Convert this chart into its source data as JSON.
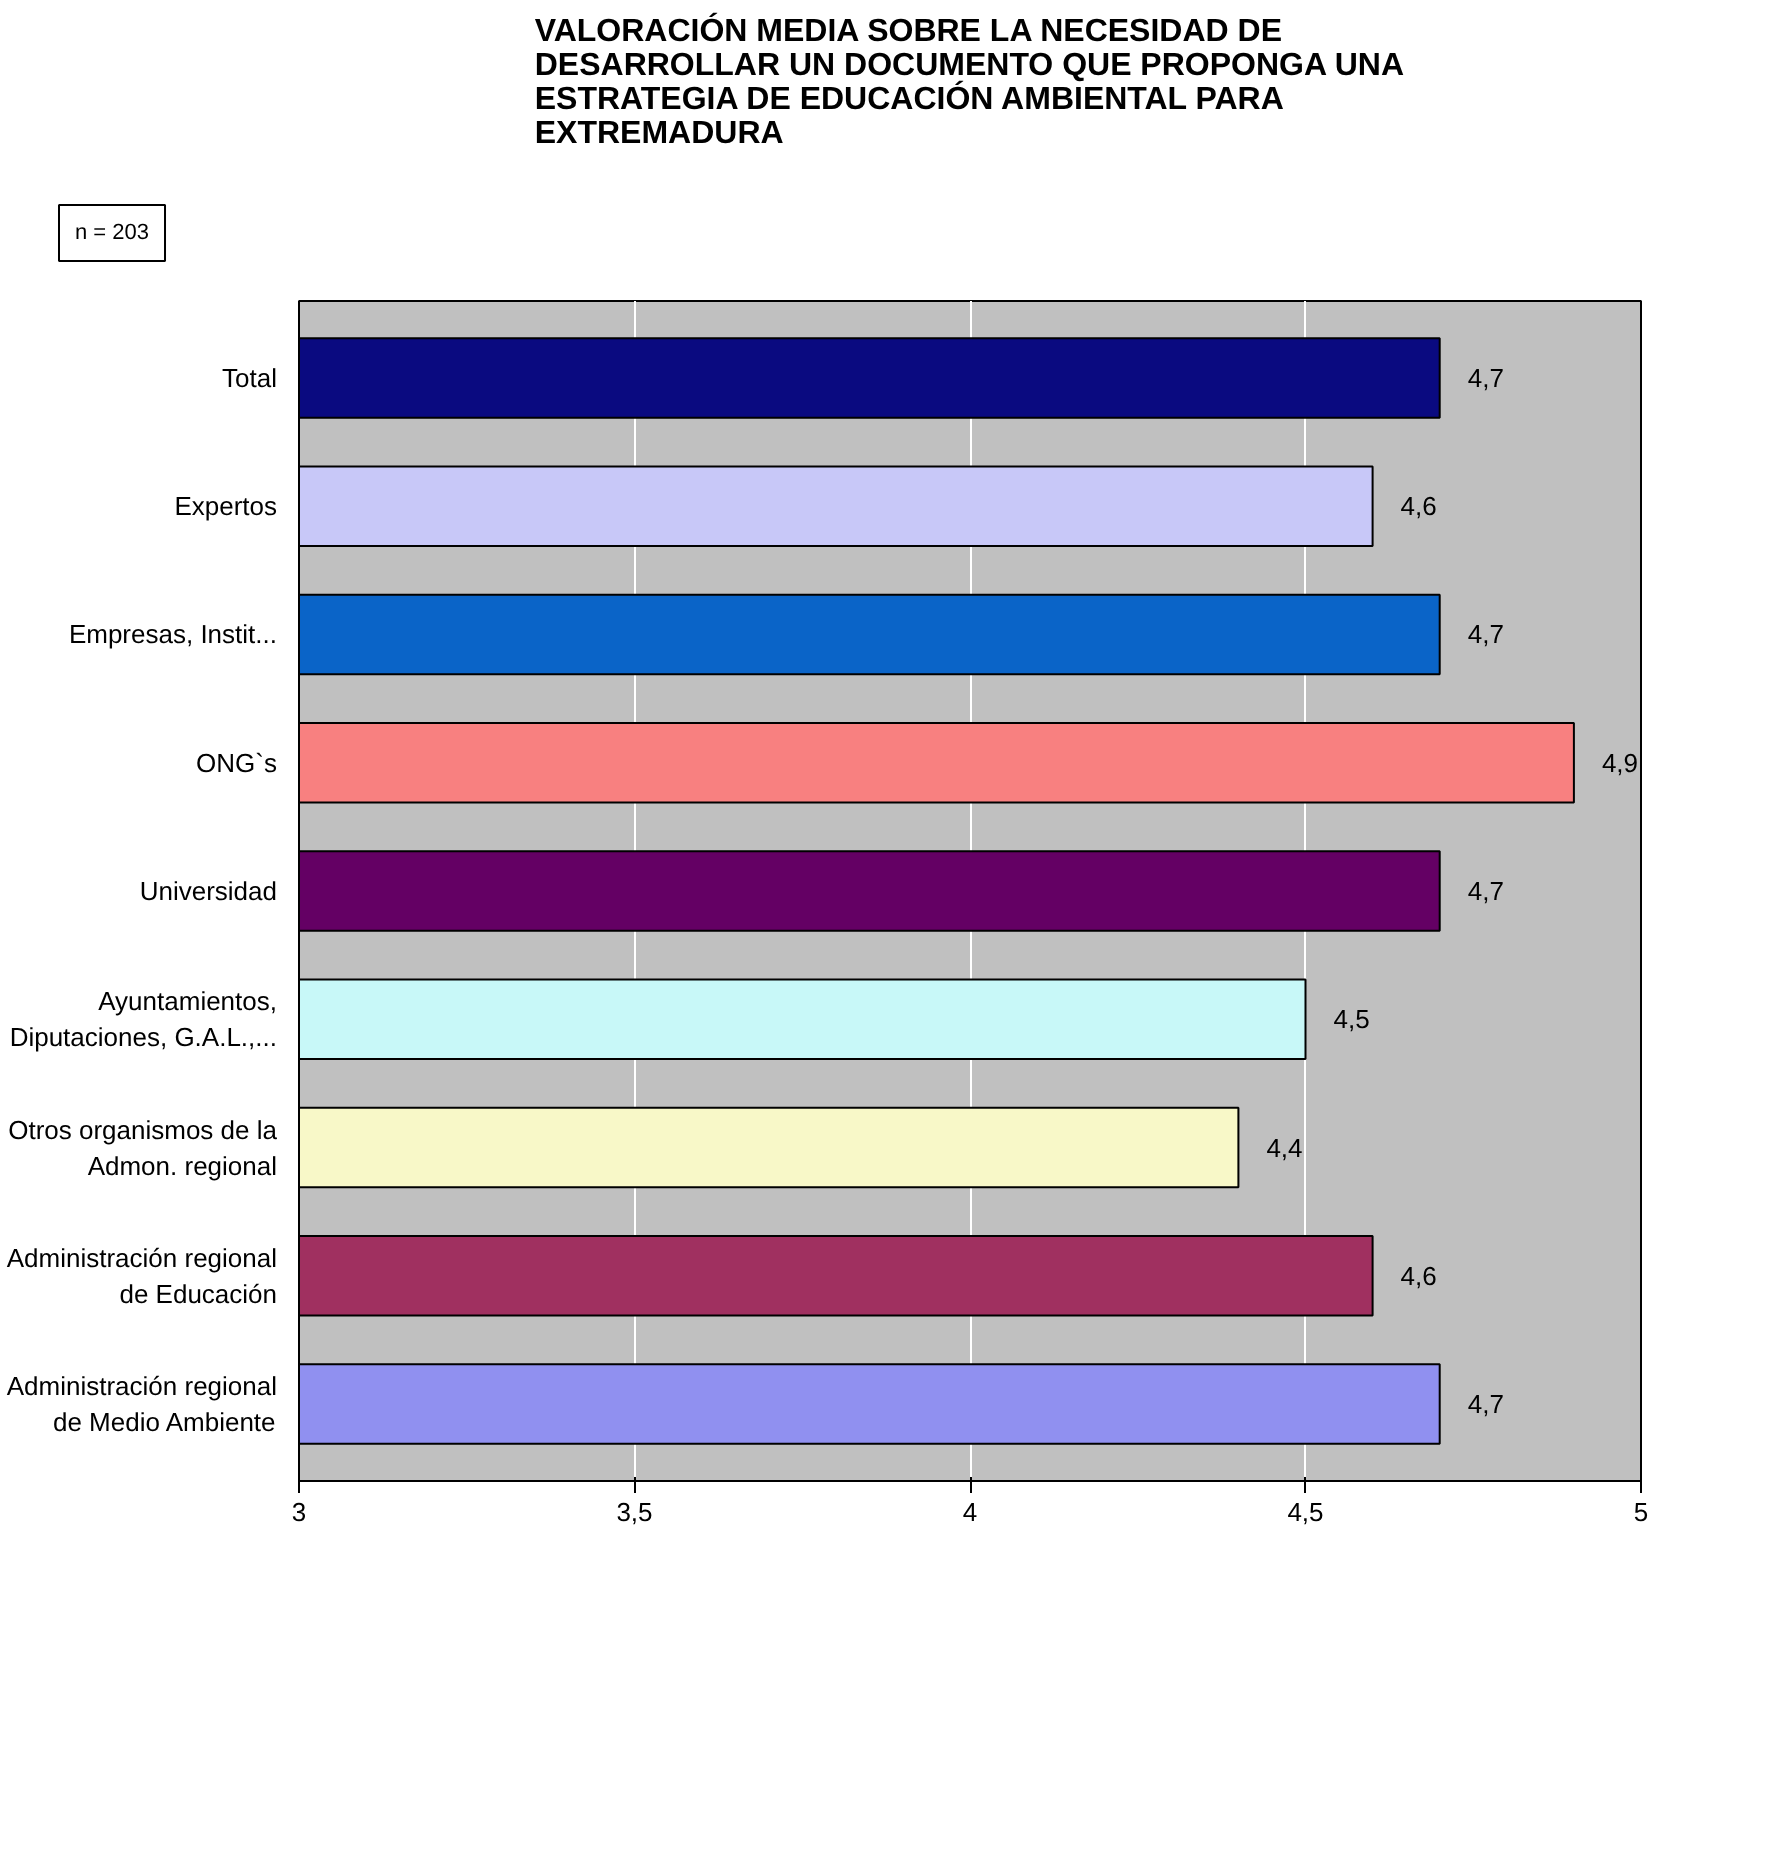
{
  "chart_data": {
    "type": "bar",
    "orientation": "horizontal",
    "title": "VALORACIÓN MEDIA SOBRE LA NECESIDAD DE\nDESARROLLAR UN DOCUMENTO QUE PROPONGA UNA\nESTRATEGIA DE EDUCACIÓN AMBIENTAL PARA\nEXTREMADURA",
    "annotations": [
      "n = 203"
    ],
    "categories": [
      "Total",
      "Expertos",
      "Empresas, Instit...",
      "ONG`s",
      "Universidad",
      "Ayuntamientos,\nDiputaciones, G.A.L.,...",
      "Otros organismos de la\nAdmon. regional",
      "Administración regional\nde Educación",
      "Administración regional\nde Medio Ambiente"
    ],
    "values": [
      4.7,
      4.6,
      4.7,
      4.9,
      4.7,
      4.5,
      4.4,
      4.6,
      4.7
    ],
    "value_labels": [
      "4,7",
      "4,6",
      "4,7",
      "4,9",
      "4,7",
      "4,5",
      "4,4",
      "4,6",
      "4,7"
    ],
    "colors": [
      "#0a0a80",
      "#c8c8f8",
      "#0a64c8",
      "#f88080",
      "#640064",
      "#c8f8f8",
      "#f8f8c8",
      "#a03060",
      "#9090f0"
    ],
    "xlim": [
      3,
      5
    ],
    "xticks": [
      3,
      {
        "value": 3.5,
        "label": "3,5"
      },
      4,
      {
        "value": 4.5,
        "label": "4,5"
      },
      5
    ],
    "grid": "x"
  }
}
